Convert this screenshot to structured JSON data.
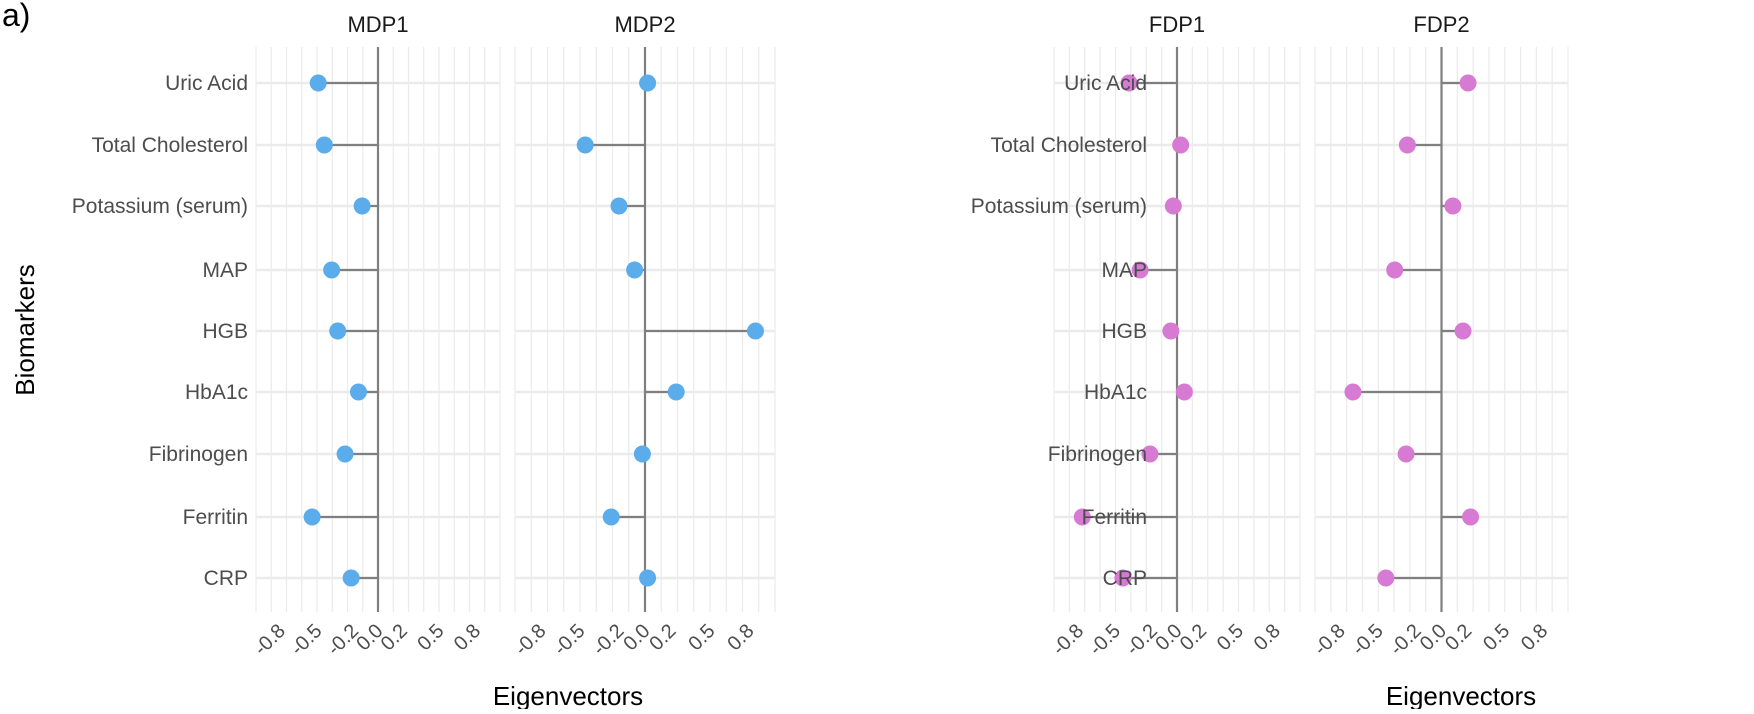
{
  "panel_tag": "a)",
  "colors": {
    "male": "#5aaceb",
    "female": "#d67ad4"
  },
  "chart_data": [
    {
      "type": "lollipop",
      "title": "MDP1",
      "xlabel": "Eigenvectors",
      "ylabel": "Biomarkers",
      "xlim": [
        -1.0,
        1.0
      ],
      "x_ticks": [
        "-0.8",
        "-0.5",
        "-0.2",
        "0.0",
        "0.2",
        "0.5",
        "0.8"
      ],
      "categories": [
        "Uric Acid",
        "Total Cholesterol",
        "Potassium (serum)",
        "MAP",
        "HGB",
        "HbA1c",
        "Fibrinogen",
        "Ferritin",
        "CRP"
      ],
      "values": [
        -0.49,
        -0.44,
        -0.13,
        -0.38,
        -0.33,
        -0.16,
        -0.27,
        -0.54,
        -0.22
      ],
      "color": "#5aaceb"
    },
    {
      "type": "lollipop",
      "title": "MDP2",
      "xlabel": "Eigenvectors",
      "xlim": [
        -1.0,
        1.0
      ],
      "x_ticks": [
        "-0.8",
        "-0.5",
        "-0.2",
        "0.0",
        "0.2",
        "0.5",
        "0.8"
      ],
      "categories": [
        "Uric Acid",
        "Total Cholesterol",
        "Potassium (serum)",
        "MAP",
        "HGB",
        "HbA1c",
        "Fibrinogen",
        "Ferritin",
        "CRP"
      ],
      "values": [
        0.02,
        -0.46,
        -0.2,
        -0.08,
        0.85,
        0.24,
        -0.02,
        -0.26,
        0.02
      ],
      "color": "#5aaceb"
    },
    {
      "type": "lollipop",
      "title": "FDP1",
      "xlabel": "Eigenvectors",
      "xlim": [
        -1.0,
        1.0
      ],
      "x_ticks": [
        "-0.8",
        "-0.5",
        "-0.2",
        "0.0",
        "0.2",
        "0.5",
        "0.8"
      ],
      "categories": [
        "Uric Acid",
        "Total Cholesterol",
        "Potassium (serum)",
        "MAP",
        "HGB",
        "HbA1c",
        "Fibrinogen",
        "Ferritin",
        "CRP"
      ],
      "values": [
        -0.39,
        0.03,
        -0.03,
        -0.3,
        -0.05,
        0.06,
        -0.22,
        -0.77,
        -0.44
      ],
      "color": "#d67ad4"
    },
    {
      "type": "lollipop",
      "title": "FDP2",
      "xlabel": "Eigenvectors",
      "xlim": [
        -1.0,
        1.0
      ],
      "x_ticks": [
        "-0.8",
        "-0.5",
        "-0.2",
        "0.0",
        "0.2",
        "0.5",
        "0.8"
      ],
      "categories": [
        "Uric Acid",
        "Total Cholesterol",
        "Potassium (serum)",
        "MAP",
        "HGB",
        "HbA1c",
        "Fibrinogen",
        "Ferritin",
        "CRP"
      ],
      "values": [
        0.21,
        -0.27,
        0.09,
        -0.37,
        0.17,
        -0.7,
        -0.28,
        0.23,
        -0.44
      ],
      "color": "#d67ad4"
    }
  ]
}
